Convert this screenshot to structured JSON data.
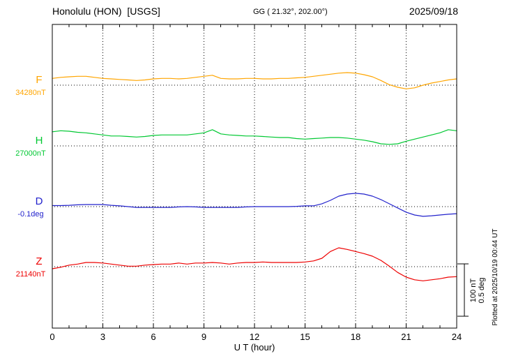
{
  "header": {
    "station": "Honolulu (HON)  [USGS]",
    "coords": "GG ( 21.32°, 202.00°)",
    "date": "2025/09/18"
  },
  "footer_note": "Plotted at 2025/10/19 00:44 UT",
  "chart_data": {
    "type": "line",
    "title": "Honolulu (HON)  [USGS]",
    "xlabel": "U T (hour)",
    "x_range": [
      0,
      24
    ],
    "x_ticks": [
      "0",
      "3",
      "6",
      "9",
      "12",
      "15",
      "18",
      "21",
      "24"
    ],
    "x_step_hours": 0.5,
    "grid": "vertical dotted gridlines every 3 hours; dotted horizontal baseline per trace",
    "legend_position": "left-of-axis labels",
    "scale_bar": {
      "nt_label": "100 nT",
      "deg_label": "0.5 deg",
      "nt_value": 100,
      "deg_value": 0.5
    },
    "series": [
      {
        "id": "F",
        "label": "F",
        "baseline_label": "34280nT",
        "baseline_value": 34280,
        "units": "nT",
        "color": "#FFA500",
        "offsets": [
          13,
          15,
          16,
          17,
          17,
          15,
          13,
          12,
          11,
          10,
          9,
          10,
          12,
          13,
          13,
          12,
          13,
          15,
          17,
          19,
          13,
          12,
          12,
          13,
          13,
          12,
          12,
          13,
          13,
          14,
          15,
          17,
          19,
          21,
          23,
          24,
          23,
          20,
          16,
          9,
          1,
          -4,
          -7,
          -5,
          0,
          4,
          7,
          10,
          12
        ]
      },
      {
        "id": "H",
        "label": "H",
        "baseline_label": "27000nT",
        "baseline_value": 27000,
        "units": "nT",
        "color": "#00C832",
        "offsets": [
          27,
          29,
          28,
          26,
          25,
          23,
          21,
          19,
          19,
          18,
          17,
          18,
          20,
          21,
          21,
          21,
          21,
          23,
          25,
          31,
          23,
          21,
          20,
          19,
          19,
          18,
          17,
          16,
          16,
          14,
          13,
          14,
          15,
          16,
          16,
          15,
          13,
          11,
          8,
          4,
          3,
          4,
          9,
          13,
          17,
          21,
          25,
          31,
          29
        ]
      },
      {
        "id": "D",
        "label": "D",
        "baseline_label": "-0.1deg",
        "baseline_value": -0.1,
        "units": "deg",
        "color": "#2222CC",
        "offsets": [
          0.01,
          0.01,
          0.013,
          0.017,
          0.02,
          0.02,
          0.02,
          0.013,
          0.007,
          0,
          -0.007,
          -0.007,
          -0.007,
          -0.007,
          -0.007,
          -0.003,
          0,
          -0.003,
          -0.007,
          -0.007,
          -0.007,
          -0.007,
          -0.007,
          -0.003,
          0,
          0,
          0,
          0,
          0,
          0.003,
          0.007,
          0.007,
          0.027,
          0.06,
          0.1,
          0.12,
          0.127,
          0.12,
          0.1,
          0.067,
          0.027,
          -0.013,
          -0.053,
          -0.08,
          -0.093,
          -0.087,
          -0.08,
          -0.073,
          -0.067
        ]
      },
      {
        "id": "Z",
        "label": "Z",
        "baseline_label": "21140nT",
        "baseline_value": 21140,
        "units": "nT",
        "color": "#EE0000",
        "offsets": [
          -4,
          -1,
          3,
          5,
          8,
          8,
          7,
          5,
          3,
          1,
          1,
          3,
          4,
          5,
          5,
          7,
          5,
          7,
          7,
          8,
          7,
          5,
          7,
          8,
          8,
          9,
          8,
          8,
          8,
          8,
          9,
          11,
          16,
          29,
          36,
          33,
          29,
          25,
          20,
          12,
          1,
          -11,
          -20,
          -25,
          -27,
          -25,
          -23,
          -20,
          -19
        ]
      }
    ]
  }
}
